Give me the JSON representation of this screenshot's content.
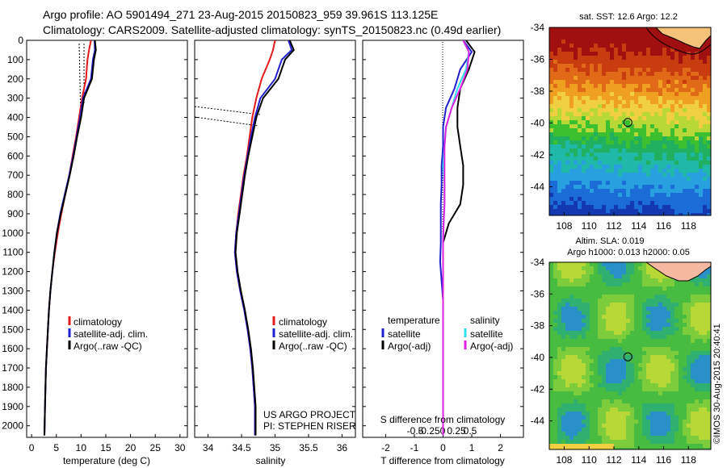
{
  "header": {
    "line1": "Argo profile: AO 5901494_271 23-Aug-2015 20150823_959 39.961S 113.125E",
    "line2": "Climatology: CARS2009. Satellite-adjusted climatology: synTS_20150823.nc (0.49d earlier)"
  },
  "credits": {
    "project": "US ARGO PROJECT",
    "pi": "PI: STEPHEN RISER",
    "stamp": "©IMOS 30-Aug-2015 20:40:41"
  },
  "colors": {
    "climatology": "#e41a1c",
    "satellite": "#1f1fd0",
    "argo": "#000000",
    "sal_satellite": "#33e0e8",
    "sal_argo": "#e020e0"
  },
  "chart_data": [
    {
      "type": "line",
      "id": "temperature",
      "xlabel": "temperature (deg C)",
      "xlim": [
        -1,
        31.5
      ],
      "ylim": [
        2060,
        0
      ],
      "xticks": [
        "0",
        "5",
        "10",
        "15",
        "20",
        "25",
        "30"
      ],
      "yticks": [
        "0",
        "100",
        "200",
        "300",
        "400",
        "500",
        "600",
        "700",
        "800",
        "900",
        "1000",
        "1100",
        "1200",
        "1300",
        "1400",
        "1500",
        "1600",
        "1700",
        "1800",
        "1900",
        "2000"
      ],
      "legend": [
        "climatology",
        "satellite-adj. clim.",
        "Argo(..raw -QC)"
      ],
      "series": [
        {
          "name": "climatology",
          "x": [
            12.0,
            11.6,
            11.3,
            11.0,
            10.2,
            9.6,
            9.0,
            8.3,
            7.6,
            6.8,
            6.0,
            5.3,
            4.7,
            4.2,
            3.8,
            3.5,
            3.3,
            3.1,
            2.9,
            2.8,
            2.7,
            2.6
          ],
          "y": [
            0,
            50,
            100,
            200,
            300,
            400,
            500,
            600,
            700,
            800,
            900,
            1000,
            1100,
            1200,
            1300,
            1400,
            1500,
            1600,
            1700,
            1800,
            1900,
            2050
          ]
        },
        {
          "name": "satellite-adj. clim.",
          "x": [
            12.7,
            12.8,
            12.4,
            12.0,
            10.4,
            9.8,
            9.1,
            8.4,
            7.6,
            6.7,
            5.8,
            5.1,
            4.6,
            4.2,
            3.8,
            3.5,
            3.3,
            3.1,
            2.9,
            2.8,
            2.7,
            2.6
          ],
          "y": [
            0,
            50,
            100,
            200,
            300,
            400,
            500,
            600,
            700,
            800,
            900,
            1000,
            1100,
            1200,
            1300,
            1400,
            1500,
            1600,
            1700,
            1800,
            1900,
            2050
          ]
        },
        {
          "name": "Argo(..raw -QC)",
          "x": [
            12.8,
            13.0,
            12.6,
            12.2,
            10.6,
            10.0,
            9.2,
            8.5,
            7.7,
            6.8,
            5.9,
            5.1,
            4.6,
            4.2,
            3.8,
            3.5,
            3.3,
            3.1,
            2.9,
            2.8,
            2.7,
            2.6
          ],
          "y": [
            0,
            50,
            100,
            200,
            300,
            400,
            500,
            600,
            700,
            800,
            900,
            1000,
            1100,
            1200,
            1300,
            1400,
            1500,
            1600,
            1700,
            1800,
            1900,
            2050
          ]
        }
      ]
    },
    {
      "type": "line",
      "id": "salinity",
      "xlabel": "salinity",
      "xlim": [
        33.8,
        36.2
      ],
      "ylim": [
        2060,
        0
      ],
      "xticks": [
        "34",
        "34.5",
        "35",
        "35.5",
        "36"
      ],
      "legend": [
        "climatology",
        "satellite-adj. clim.",
        "Argo(..raw -QC)"
      ],
      "series": [
        {
          "name": "climatology",
          "x": [
            35.0,
            34.97,
            34.92,
            34.8,
            34.72,
            34.66,
            34.62,
            34.58,
            34.53,
            34.49,
            34.45,
            34.42,
            34.4,
            34.43,
            34.48,
            34.54,
            34.59,
            34.63,
            34.66,
            34.68,
            34.7,
            34.7
          ],
          "y": [
            0,
            50,
            100,
            200,
            300,
            400,
            500,
            600,
            700,
            800,
            900,
            1000,
            1100,
            1200,
            1300,
            1400,
            1500,
            1600,
            1700,
            1800,
            1900,
            2050
          ]
        },
        {
          "name": "satellite-adj. clim.",
          "x": [
            35.2,
            35.25,
            35.1,
            35.0,
            34.78,
            34.7,
            34.64,
            34.59,
            34.54,
            34.5,
            34.46,
            34.42,
            34.4,
            34.43,
            34.48,
            34.54,
            34.59,
            34.63,
            34.66,
            34.68,
            34.7,
            34.7
          ],
          "y": [
            0,
            50,
            100,
            200,
            300,
            400,
            500,
            600,
            700,
            800,
            900,
            1000,
            1100,
            1200,
            1300,
            1400,
            1500,
            1600,
            1700,
            1800,
            1900,
            2050
          ]
        },
        {
          "name": "Argo(..raw -QC)",
          "x": [
            35.22,
            35.28,
            35.15,
            35.05,
            34.82,
            34.72,
            34.66,
            34.6,
            34.55,
            34.51,
            34.47,
            34.43,
            34.41,
            34.44,
            34.49,
            34.55,
            34.6,
            34.64,
            34.67,
            34.69,
            34.71,
            34.71
          ],
          "y": [
            0,
            50,
            100,
            200,
            300,
            400,
            500,
            600,
            700,
            800,
            900,
            1000,
            1100,
            1200,
            1300,
            1400,
            1500,
            1600,
            1700,
            1800,
            1900,
            2050
          ]
        }
      ]
    },
    {
      "type": "line",
      "id": "difference",
      "xlabel": "T difference from climatology",
      "xlabel2": "S difference from climatology",
      "xlim": [
        -2.8,
        2.8
      ],
      "ylim": [
        2060,
        0
      ],
      "xticks": [
        "-2",
        "-1",
        "0",
        "1",
        "2"
      ],
      "xticks2": [
        "-0.5",
        "-0.25",
        "0",
        "0.25",
        "0.5"
      ],
      "legend_titles": [
        "temperature",
        "salinity"
      ],
      "legend": [
        "satellite",
        "Argo(-adj)",
        "satellite",
        "Argo(-adj)"
      ],
      "series": [
        {
          "name": "satellite",
          "x": [
            0.7,
            1.0,
            0.6,
            0.4,
            0.1,
            0.0,
            0.0,
            -0.05,
            -0.05,
            -0.08,
            -0.08,
            -0.08,
            -0.1,
            -0.05,
            0.0,
            0.0,
            0.0,
            0.0,
            0.0,
            0.0,
            0.0
          ],
          "y": [
            0,
            60,
            150,
            250,
            350,
            450,
            550,
            650,
            750,
            850,
            950,
            1050,
            1150,
            1250,
            1350,
            1500,
            1600,
            1700,
            1800,
            1900,
            2050
          ]
        },
        {
          "name": "Argo(-adj)",
          "x": [
            0.8,
            1.1,
            0.9,
            0.6,
            0.5,
            0.5,
            0.6,
            0.7,
            0.7,
            0.6,
            0.2,
            0.0,
            0.0,
            0.0,
            0.0,
            0.0,
            0.0,
            0.0,
            0.0,
            0.0,
            0.0
          ],
          "y": [
            0,
            60,
            150,
            250,
            350,
            450,
            550,
            650,
            750,
            850,
            950,
            1050,
            1150,
            1250,
            1350,
            1500,
            1600,
            1700,
            1800,
            1900,
            2050
          ]
        },
        {
          "name": "satellite",
          "x": [
            0.7,
            0.9,
            0.8,
            0.5,
            0.3,
            0.1,
            0.05,
            0.0,
            0.05,
            0.05,
            0.02,
            0.0,
            0.0,
            0.0,
            0.0,
            0.0,
            0.0,
            0.0,
            0.0
          ],
          "y": [
            0,
            60,
            150,
            250,
            350,
            450,
            550,
            650,
            750,
            850,
            950,
            1050,
            1150,
            1300,
            1500,
            1600,
            1700,
            1900,
            2050
          ]
        },
        {
          "name": "Argo(-adj)",
          "x": [
            0.7,
            0.9,
            0.85,
            0.6,
            0.3,
            0.1,
            0.05,
            0.05,
            0.05,
            0.05,
            0.02,
            0.0,
            0.0,
            0.0,
            0.0,
            0.0,
            0.0,
            0.0,
            0.0
          ],
          "y": [
            0,
            60,
            150,
            250,
            350,
            450,
            550,
            650,
            750,
            850,
            950,
            1050,
            1150,
            1300,
            1500,
            1600,
            1700,
            1900,
            2050
          ]
        }
      ]
    },
    {
      "type": "heatmap",
      "id": "sst_map",
      "title": "sat. SST: 12.6 Argo: 12.2",
      "xlim": [
        106.8,
        119.8
      ],
      "ylim": [
        -45.8,
        -34
      ],
      "xticks": [
        "108",
        "110",
        "112",
        "114",
        "116",
        "118"
      ],
      "yticks": [
        "-34",
        "-36",
        "-38",
        "-40",
        "-42",
        "-44"
      ],
      "marker": {
        "lon": 113.125,
        "lat": -39.961
      }
    },
    {
      "type": "heatmap",
      "id": "sla_map",
      "title": "Altim. SLA: 0.019",
      "subtitle": "Argo h1000: 0.013 h2000: 0.05",
      "xlim": [
        106.8,
        119.8
      ],
      "ylim": [
        -45.8,
        -34
      ],
      "xticks": [
        "108",
        "110",
        "112",
        "114",
        "116",
        "118"
      ],
      "yticks": [
        "-34",
        "-36",
        "-38",
        "-40",
        "-42",
        "-44"
      ],
      "marker": {
        "lon": 113.125,
        "lat": -39.961
      }
    }
  ]
}
